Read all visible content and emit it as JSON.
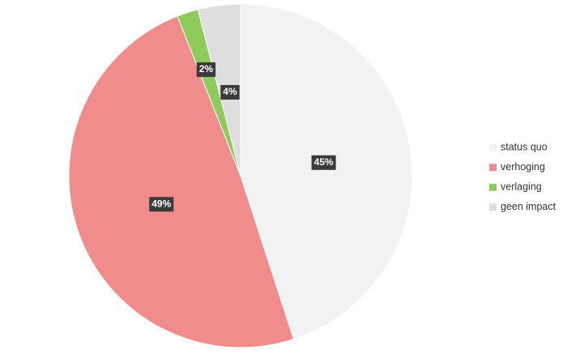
{
  "chart_data": {
    "type": "pie",
    "categories": [
      "status quo",
      "verhoging",
      "verlaging",
      "geen impact"
    ],
    "values": [
      45,
      49,
      2,
      4
    ],
    "value_labels": [
      "45%",
      "49%",
      "2%",
      "4%"
    ],
    "colors": [
      "#f2f2f2",
      "#f08c8c",
      "#8fcb5c",
      "#dedede"
    ],
    "legend": "right"
  }
}
